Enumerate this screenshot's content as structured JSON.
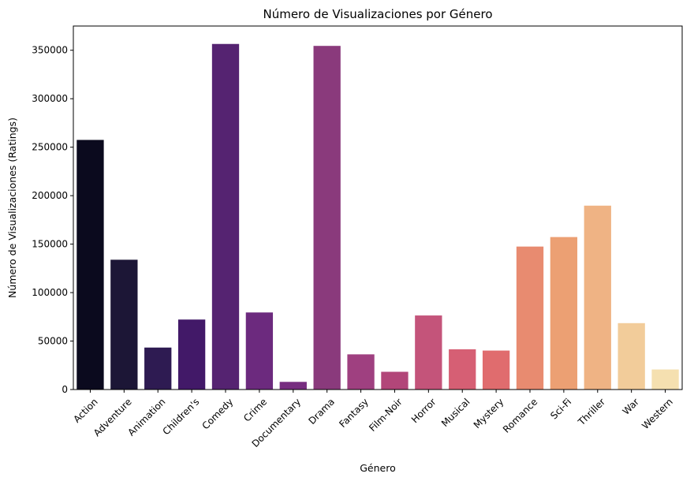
{
  "chart_data": {
    "type": "bar",
    "title": "Número de Visualizaciones por Género",
    "xlabel": "Género",
    "ylabel": "Número de Visualizaciones (Ratings)",
    "ylim": [
      0,
      375000
    ],
    "yticks": [
      0,
      50000,
      100000,
      150000,
      200000,
      250000,
      300000,
      350000
    ],
    "grid": false,
    "categories": [
      "Action",
      "Adventure",
      "Animation",
      "Children's",
      "Comedy",
      "Crime",
      "Documentary",
      "Drama",
      "Fantasy",
      "Film-Noir",
      "Horror",
      "Musical",
      "Mystery",
      "Romance",
      "Sci-Fi",
      "Thriller",
      "War",
      "Western"
    ],
    "values": [
      257500,
      133900,
      43300,
      72200,
      356500,
      79500,
      7900,
      354500,
      36300,
      18300,
      76400,
      41500,
      40200,
      147500,
      157300,
      189700,
      68500,
      20700
    ],
    "colors": [
      "#0b0a1e",
      "#1c1636",
      "#2e1b52",
      "#421968",
      "#552371",
      "#6c2a7e",
      "#772d80",
      "#8a3a7c",
      "#9f4080",
      "#b24679",
      "#c4547a",
      "#d65f74",
      "#e06c6e",
      "#e88b70",
      "#eca073",
      "#efb384",
      "#f2cc9a",
      "#f5e0b0"
    ]
  }
}
